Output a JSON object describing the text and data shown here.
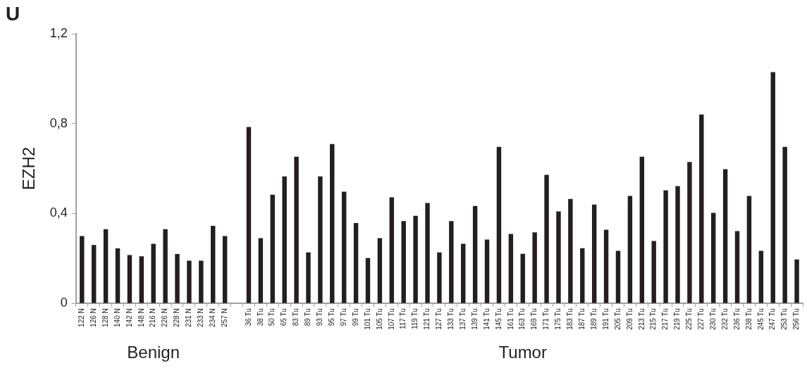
{
  "chart_data": {
    "type": "bar",
    "ylabel": "EZH2",
    "annotations": [
      "U",
      "Benign",
      "Tumor"
    ],
    "categories": [
      "122 N",
      "126 N",
      "128 N",
      "140 N",
      "142 N",
      "148 N",
      "216 N",
      "226 N",
      "228 N",
      "231 N",
      "233 N",
      "234 N",
      "257 N",
      null,
      "36 Tu",
      "38 Tu",
      "50 Tu",
      "65 Tu",
      "83 Tu",
      "89 Tu",
      "93 Tu",
      "95 Tu",
      "97 Tu",
      "99 Tu",
      "101 Tu",
      "105 Tu",
      "107 Tu",
      "117 Tu",
      "119 Tu",
      "121 Tu",
      "127 Tu",
      "133 Tu",
      "137 Tu",
      "139 Tu",
      "141 Tu",
      "145 Tu",
      "161 Tu",
      "163 Tu",
      "169 Tu",
      "171 Tu",
      "175 Tu",
      "183 Tu",
      "187 Tu",
      "189 Tu",
      "191 Tu",
      "205 Tu",
      "209 Tu",
      "213 Tu",
      "215 Tu",
      "217 Tu",
      "219 Tu",
      "225 Tu",
      "227 Tu",
      "230 Tu",
      "232 Tu",
      "236 Tu",
      "238 Tu",
      "245 Tu",
      "247 Tu",
      "253 Tu",
      "256 Tu"
    ],
    "values": [
      0.3,
      0.26,
      0.33,
      0.245,
      0.215,
      0.21,
      0.265,
      0.33,
      0.22,
      0.19,
      0.19,
      0.345,
      0.3,
      null,
      0.785,
      0.29,
      0.484,
      0.565,
      0.653,
      0.227,
      0.565,
      0.709,
      0.497,
      0.358,
      0.202,
      0.29,
      0.472,
      0.366,
      0.39,
      0.447,
      0.227,
      0.366,
      0.265,
      0.434,
      0.284,
      0.697,
      0.309,
      0.221,
      0.316,
      0.572,
      0.409,
      0.465,
      0.246,
      0.44,
      0.328,
      0.234,
      0.478,
      0.653,
      0.278,
      0.503,
      0.522,
      0.629,
      0.841,
      0.403,
      0.597,
      0.322,
      0.478,
      0.234,
      1.029,
      0.697,
      0.196
    ],
    "color": "#231f20",
    "ylim": [
      0,
      1.2
    ],
    "yticks": [
      0,
      {
        "value": 0.4,
        "label": "0,4"
      },
      {
        "value": 0.8,
        "label": "0,8"
      },
      {
        "value": 1.2,
        "label": "1,2"
      }
    ],
    "grid": false,
    "legend": false
  }
}
